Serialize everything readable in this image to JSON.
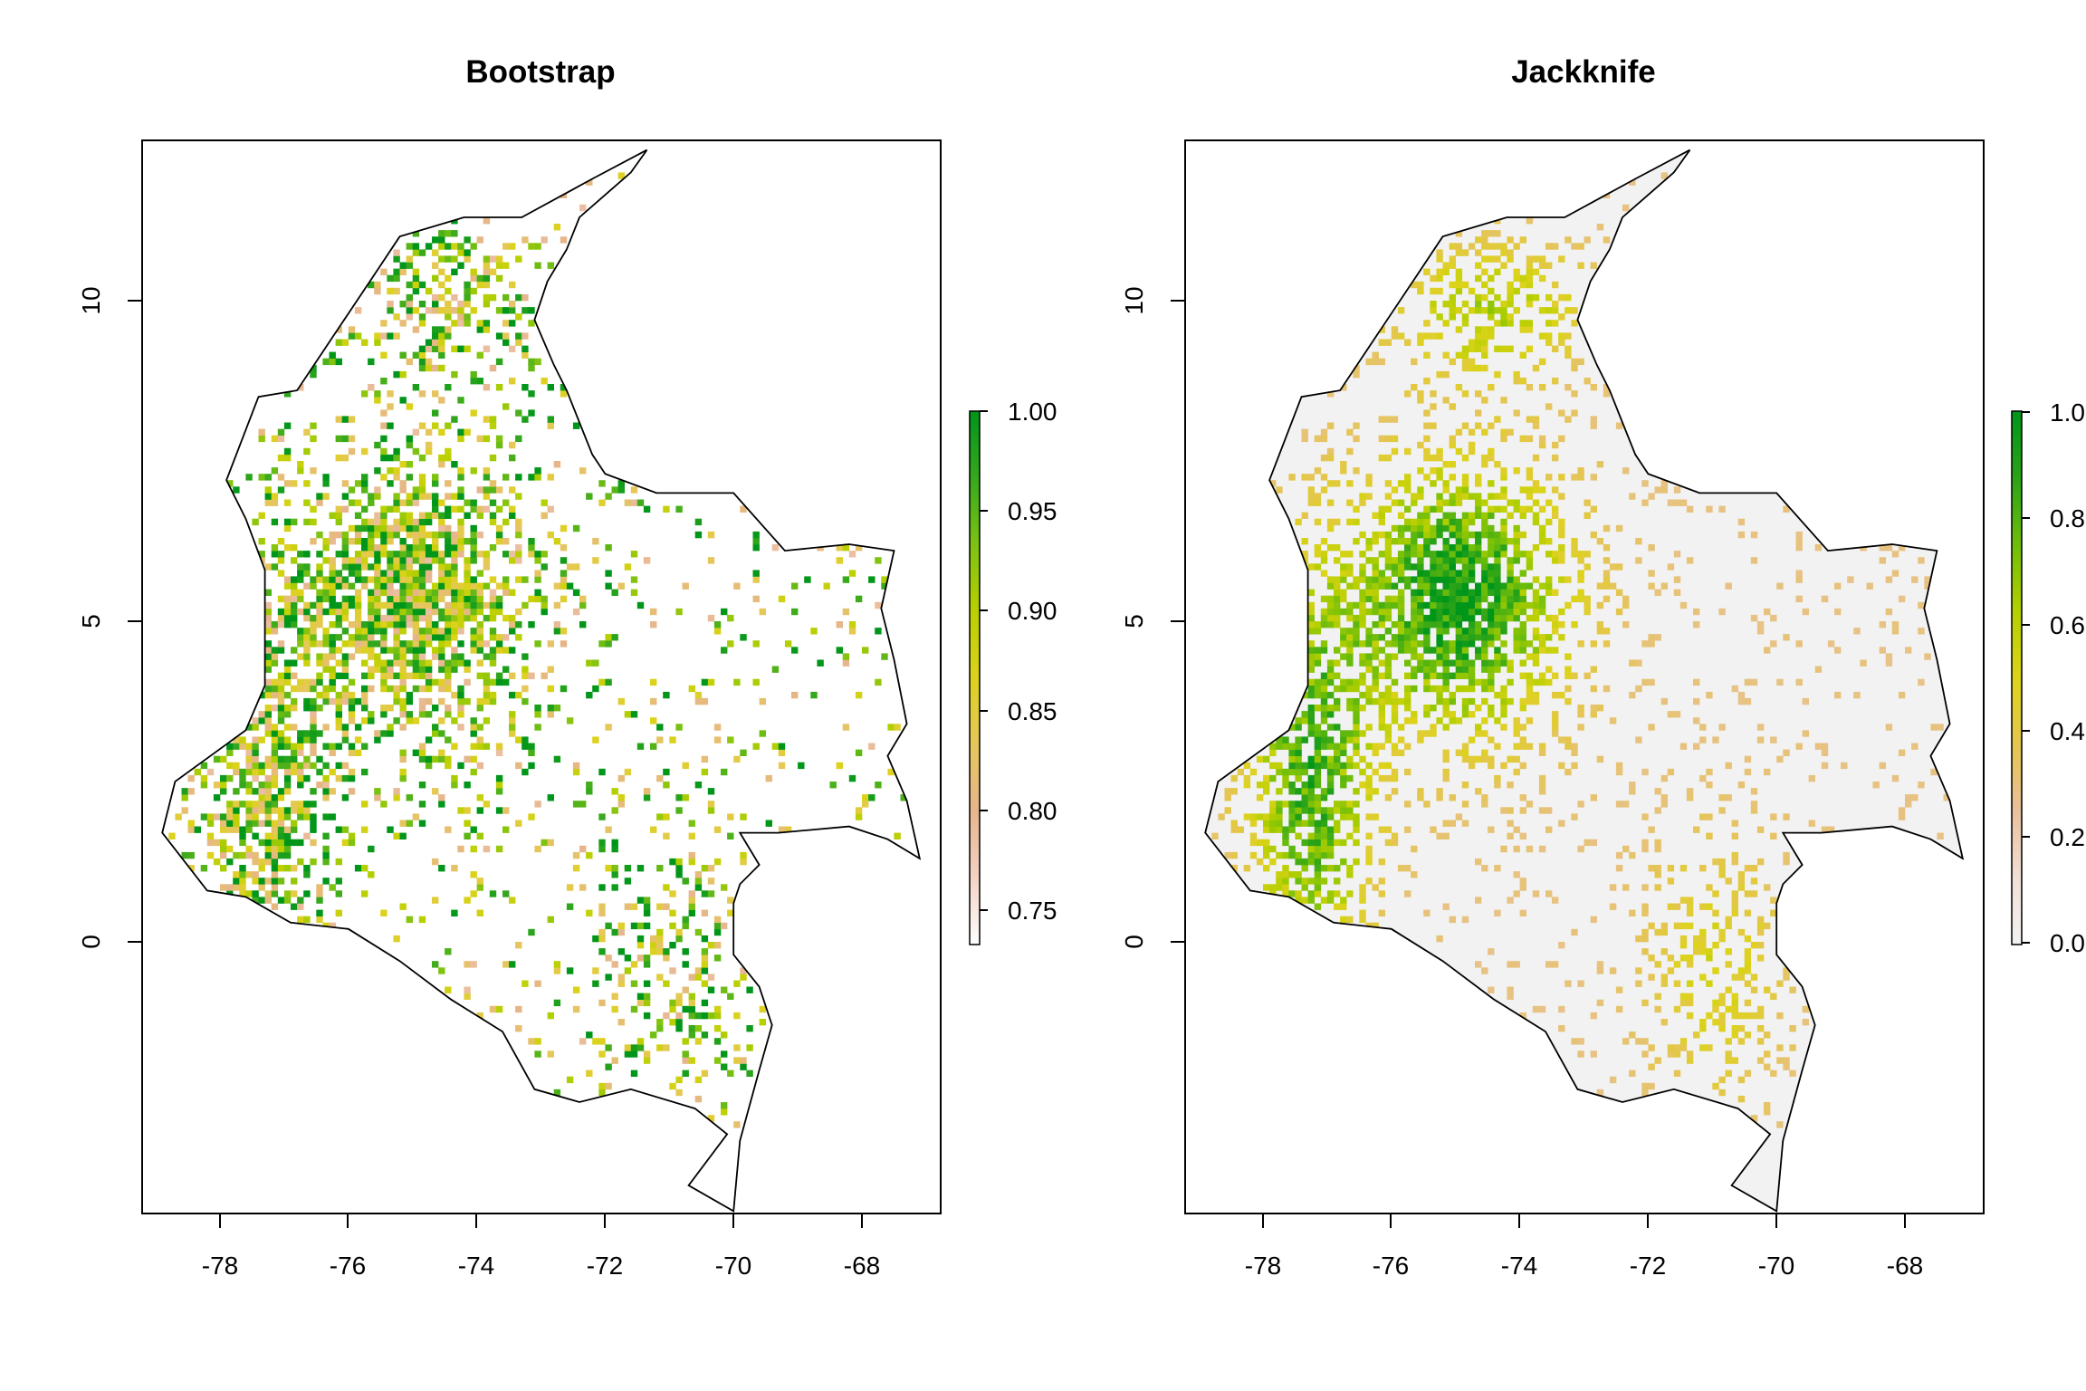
{
  "chart_data": [
    {
      "type": "heatmap",
      "title": "Bootstrap",
      "xlabel": "",
      "ylabel": "",
      "xlim": [
        -79.2,
        -66.8
      ],
      "ylim": [
        -4.2,
        12.5
      ],
      "x_ticks": [
        "-78",
        "-76",
        "-74",
        "-72",
        "-70",
        "-68"
      ],
      "y_ticks": [
        "0",
        "5",
        "10"
      ],
      "colorbar": {
        "range": [
          0.73,
          1.0
        ],
        "ticks": [
          "0.75",
          "0.80",
          "0.85",
          "0.90",
          "0.95",
          "1.00"
        ],
        "colors": [
          "#ffffff",
          "#f3d2c4",
          "#e6b58c",
          "#e6c75a",
          "#dcd21c",
          "#b9d000",
          "#7cc212",
          "#35a81d",
          "#00961a"
        ]
      },
      "values_note_visible": "",
      "background_fill": "#ffffff"
    },
    {
      "type": "heatmap",
      "title": "Jackknife",
      "xlabel": "",
      "ylabel": "",
      "xlim": [
        -79.2,
        -66.8
      ],
      "ylim": [
        -4.2,
        12.5
      ],
      "x_ticks": [
        "-78",
        "-76",
        "-74",
        "-72",
        "-70",
        "-68"
      ],
      "y_ticks": [
        "0",
        "5",
        "10"
      ],
      "colorbar": {
        "range": [
          0.0,
          1.0
        ],
        "ticks": [
          "0.0",
          "0.2",
          "0.4",
          "0.6",
          "0.8",
          "1.0"
        ],
        "colors": [
          "#f2f2f2",
          "#f1dfd6",
          "#e9c09c",
          "#e4c64d",
          "#dcd31a",
          "#b4cf00",
          "#6fbe0a",
          "#2aa318",
          "#00961a"
        ]
      },
      "background_fill": "#f2f2f2"
    }
  ],
  "colombia_outline_lonlat": [
    [
      -71.35,
      12.35
    ],
    [
      -71.6,
      12.0
    ],
    [
      -72.0,
      11.65
    ],
    [
      -72.4,
      11.3
    ],
    [
      -72.6,
      10.8
    ],
    [
      -72.9,
      10.3
    ],
    [
      -73.1,
      9.7
    ],
    [
      -72.8,
      9.0
    ],
    [
      -72.6,
      8.6
    ],
    [
      -72.4,
      8.1
    ],
    [
      -72.2,
      7.6
    ],
    [
      -72.0,
      7.3
    ],
    [
      -71.2,
      7.0
    ],
    [
      -70.0,
      7.0
    ],
    [
      -69.2,
      6.1
    ],
    [
      -68.2,
      6.2
    ],
    [
      -67.5,
      6.1
    ],
    [
      -67.7,
      5.2
    ],
    [
      -67.5,
      4.4
    ],
    [
      -67.3,
      3.4
    ],
    [
      -67.6,
      2.9
    ],
    [
      -67.3,
      2.2
    ],
    [
      -67.1,
      1.3
    ],
    [
      -67.6,
      1.6
    ],
    [
      -68.2,
      1.8
    ],
    [
      -69.3,
      1.7
    ],
    [
      -69.9,
      1.7
    ],
    [
      -69.6,
      1.2
    ],
    [
      -69.9,
      0.9
    ],
    [
      -70.0,
      0.6
    ],
    [
      -70.0,
      -0.2
    ],
    [
      -69.6,
      -0.7
    ],
    [
      -69.4,
      -1.3
    ],
    [
      -69.6,
      -2.0
    ],
    [
      -69.9,
      -3.1
    ],
    [
      -70.0,
      -4.2
    ],
    [
      -70.7,
      -3.8
    ],
    [
      -70.1,
      -3.0
    ],
    [
      -70.6,
      -2.6
    ],
    [
      -71.6,
      -2.3
    ],
    [
      -72.4,
      -2.5
    ],
    [
      -73.1,
      -2.3
    ],
    [
      -73.6,
      -1.4
    ],
    [
      -74.4,
      -0.9
    ],
    [
      -75.2,
      -0.3
    ],
    [
      -76.0,
      0.2
    ],
    [
      -76.9,
      0.3
    ],
    [
      -77.6,
      0.7
    ],
    [
      -78.2,
      0.8
    ],
    [
      -78.9,
      1.7
    ],
    [
      -78.7,
      2.5
    ],
    [
      -77.6,
      3.3
    ],
    [
      -77.3,
      4.0
    ],
    [
      -77.3,
      5.0
    ],
    [
      -77.3,
      5.8
    ],
    [
      -77.6,
      6.6
    ],
    [
      -77.9,
      7.2
    ],
    [
      -77.4,
      8.5
    ],
    [
      -76.8,
      8.6
    ],
    [
      -76.2,
      9.5
    ],
    [
      -75.6,
      10.4
    ],
    [
      -75.2,
      11.0
    ],
    [
      -74.2,
      11.3
    ],
    [
      -73.3,
      11.3
    ],
    [
      -72.2,
      11.9
    ]
  ]
}
